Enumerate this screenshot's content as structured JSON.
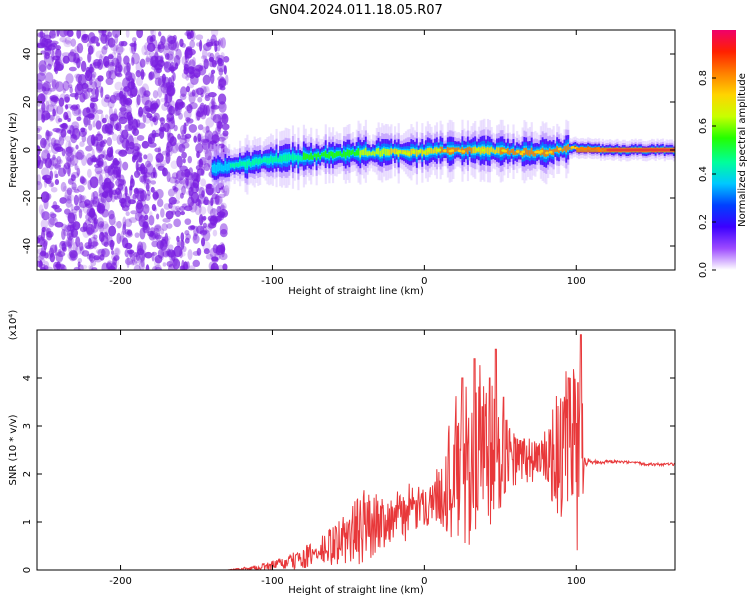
{
  "page_title": "GN04.2024.011.18.05.R07",
  "colors": {
    "snr_line": "#e8383a",
    "noise": "#7a1fe0",
    "core": "#e8383a"
  },
  "chart_data": [
    {
      "type": "heatmap",
      "title": "",
      "xlabel": "Height of straight line (km)",
      "ylabel": "Frequency (Hz)",
      "xlim": [
        -255,
        165
      ],
      "ylim": [
        -50,
        50
      ],
      "x_ticks": [
        "-200",
        "-100",
        "0",
        "100"
      ],
      "y_ticks": [
        "40",
        "20",
        "0",
        "-20",
        "-40"
      ],
      "grid": false,
      "colorbar": {
        "label": "Normalized spectral amplitude",
        "range": [
          0,
          1
        ],
        "ticks": [
          "0.0",
          "0.2",
          "0.4",
          "0.6",
          "0.8"
        ],
        "colormap": [
          "#ffffff",
          "#9d4bff",
          "#3b00ff",
          "#0040ff",
          "#00c8ff",
          "#00ff9a",
          "#24ff00",
          "#c8ff00",
          "#ffd400",
          "#ff8000",
          "#ff2000",
          "#f0006a"
        ]
      },
      "noise_region_x": [
        -255,
        -130
      ],
      "ridge": {
        "x": [
          -140,
          -120,
          -100,
          -80,
          -60,
          -40,
          -20,
          0,
          20,
          40,
          60,
          80,
          95,
          120,
          140,
          165
        ],
        "center": [
          -8,
          -6,
          -4,
          -3,
          -2,
          -1,
          -1,
          -1,
          0,
          0,
          -1,
          -1,
          1,
          0,
          0,
          0
        ],
        "amplitude": [
          0.25,
          0.35,
          0.35,
          0.4,
          0.45,
          0.5,
          0.6,
          0.65,
          0.7,
          0.65,
          0.7,
          0.7,
          0.75,
          0.85,
          0.95,
          1.0
        ]
      }
    },
    {
      "type": "line",
      "title": "",
      "xlabel": "Height of straight line (km)",
      "ylabel": "SNR (10 * v/v)",
      "scale_label": "(x10⁴)",
      "xlim": [
        -255,
        165
      ],
      "ylim": [
        0,
        5
      ],
      "x_ticks": [
        "-200",
        "-100",
        "0",
        "100"
      ],
      "y_ticks": [
        "0",
        "1",
        "2",
        "3",
        "4"
      ],
      "grid": false,
      "series": [
        {
          "name": "",
          "x": [
            -255,
            -130,
            -110,
            -90,
            -70,
            -55,
            -40,
            -30,
            -20,
            -10,
            0,
            10,
            20,
            27,
            30,
            35,
            40,
            45,
            50,
            55,
            60,
            70,
            80,
            90,
            97,
            100,
            103,
            105,
            110,
            130,
            150,
            165
          ],
          "y": [
            0,
            0,
            0.05,
            0.15,
            0.35,
            0.6,
            0.9,
            1.0,
            1.1,
            1.2,
            1.3,
            1.6,
            2.0,
            2.1,
            2.3,
            2.2,
            2.4,
            2.3,
            2.2,
            2.4,
            2.3,
            2.3,
            2.3,
            2.4,
            2.3,
            2.3,
            2.4,
            2.35,
            2.25,
            2.25,
            2.2,
            2.2
          ],
          "spread": [
            0,
            0,
            0.05,
            0.15,
            0.3,
            0.5,
            0.8,
            0.6,
            0.5,
            0.6,
            0.4,
            0.6,
            1.6,
            2.0,
            1.8,
            2.0,
            2.2,
            1.6,
            1.0,
            0.8,
            0.6,
            0.5,
            0.6,
            1.6,
            2.0,
            2.0,
            2.4,
            0.2,
            0.05,
            0.03,
            0.03,
            0.03
          ],
          "peaks": [
            [
              25,
              4.0
            ],
            [
              33,
              4.4
            ],
            [
              38,
              3.4
            ],
            [
              43,
              4.0
            ],
            [
              47,
              4.6
            ],
            [
              52,
              3.6
            ],
            [
              58,
              2.3
            ],
            [
              95,
              4.0
            ],
            [
              101,
              3.9
            ],
            [
              103,
              4.9
            ]
          ]
        }
      ]
    }
  ]
}
